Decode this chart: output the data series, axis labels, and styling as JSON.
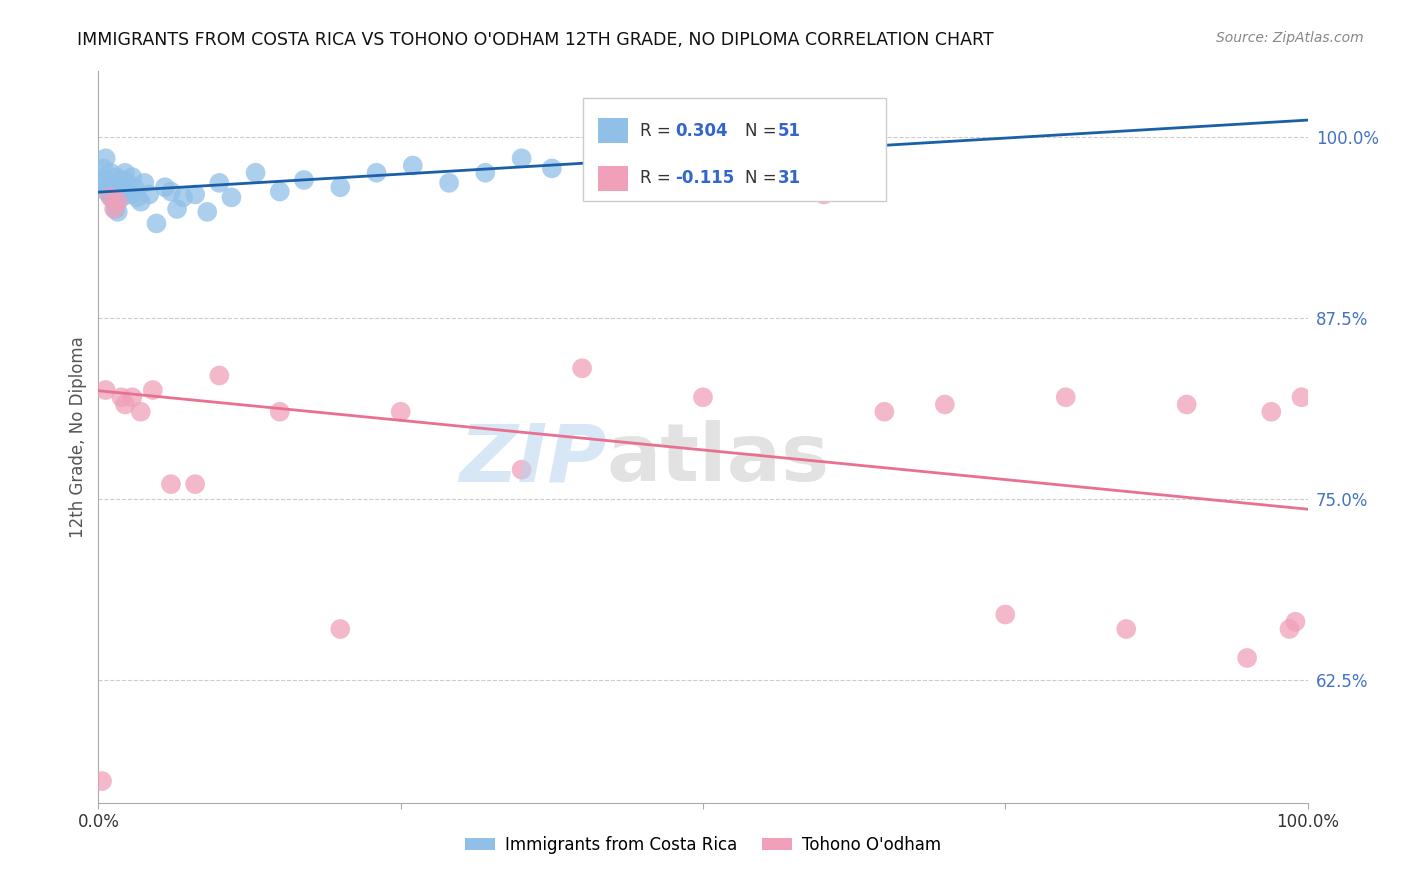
{
  "title": "IMMIGRANTS FROM COSTA RICA VS TOHONO O'ODHAM 12TH GRADE, NO DIPLOMA CORRELATION CHART",
  "source": "Source: ZipAtlas.com",
  "ylabel": "12th Grade, No Diploma",
  "xlim": [
    0.0,
    1.0
  ],
  "ylim": [
    0.54,
    1.045
  ],
  "color_blue": "#90c0e8",
  "color_pink": "#f0a0b8",
  "line_blue": "#1a5fa8",
  "line_pink": "#e87090",
  "blue_x": [
    0.002,
    0.003,
    0.004,
    0.005,
    0.006,
    0.007,
    0.008,
    0.009,
    0.01,
    0.011,
    0.012,
    0.013,
    0.014,
    0.015,
    0.016,
    0.017,
    0.018,
    0.019,
    0.02,
    0.021,
    0.022,
    0.024,
    0.026,
    0.028,
    0.03,
    0.032,
    0.035,
    0.038,
    0.042,
    0.048,
    0.055,
    0.06,
    0.065,
    0.07,
    0.08,
    0.09,
    0.1,
    0.11,
    0.13,
    0.15,
    0.17,
    0.2,
    0.23,
    0.26,
    0.29,
    0.32,
    0.35,
    0.375,
    0.41,
    0.45,
    0.49
  ],
  "blue_y": [
    0.968,
    0.972,
    0.978,
    0.97,
    0.985,
    0.962,
    0.965,
    0.96,
    0.975,
    0.958,
    0.968,
    0.955,
    0.95,
    0.972,
    0.948,
    0.965,
    0.96,
    0.958,
    0.963,
    0.97,
    0.975,
    0.968,
    0.96,
    0.972,
    0.965,
    0.958,
    0.955,
    0.968,
    0.96,
    0.94,
    0.965,
    0.962,
    0.95,
    0.958,
    0.96,
    0.948,
    0.968,
    0.958,
    0.975,
    0.962,
    0.97,
    0.965,
    0.975,
    0.98,
    0.968,
    0.975,
    0.985,
    0.978,
    0.985,
    0.99,
    0.992
  ],
  "pink_x": [
    0.003,
    0.006,
    0.01,
    0.013,
    0.016,
    0.019,
    0.022,
    0.028,
    0.035,
    0.045,
    0.06,
    0.08,
    0.1,
    0.15,
    0.2,
    0.25,
    0.35,
    0.4,
    0.5,
    0.6,
    0.65,
    0.7,
    0.75,
    0.8,
    0.85,
    0.9,
    0.95,
    0.97,
    0.985,
    0.99,
    0.995
  ],
  "pink_y": [
    0.555,
    0.825,
    0.958,
    0.95,
    0.955,
    0.82,
    0.815,
    0.82,
    0.81,
    0.825,
    0.76,
    0.76,
    0.835,
    0.81,
    0.66,
    0.81,
    0.77,
    0.84,
    0.82,
    0.96,
    0.81,
    0.815,
    0.67,
    0.82,
    0.66,
    0.815,
    0.64,
    0.81,
    0.66,
    0.665,
    0.82
  ]
}
